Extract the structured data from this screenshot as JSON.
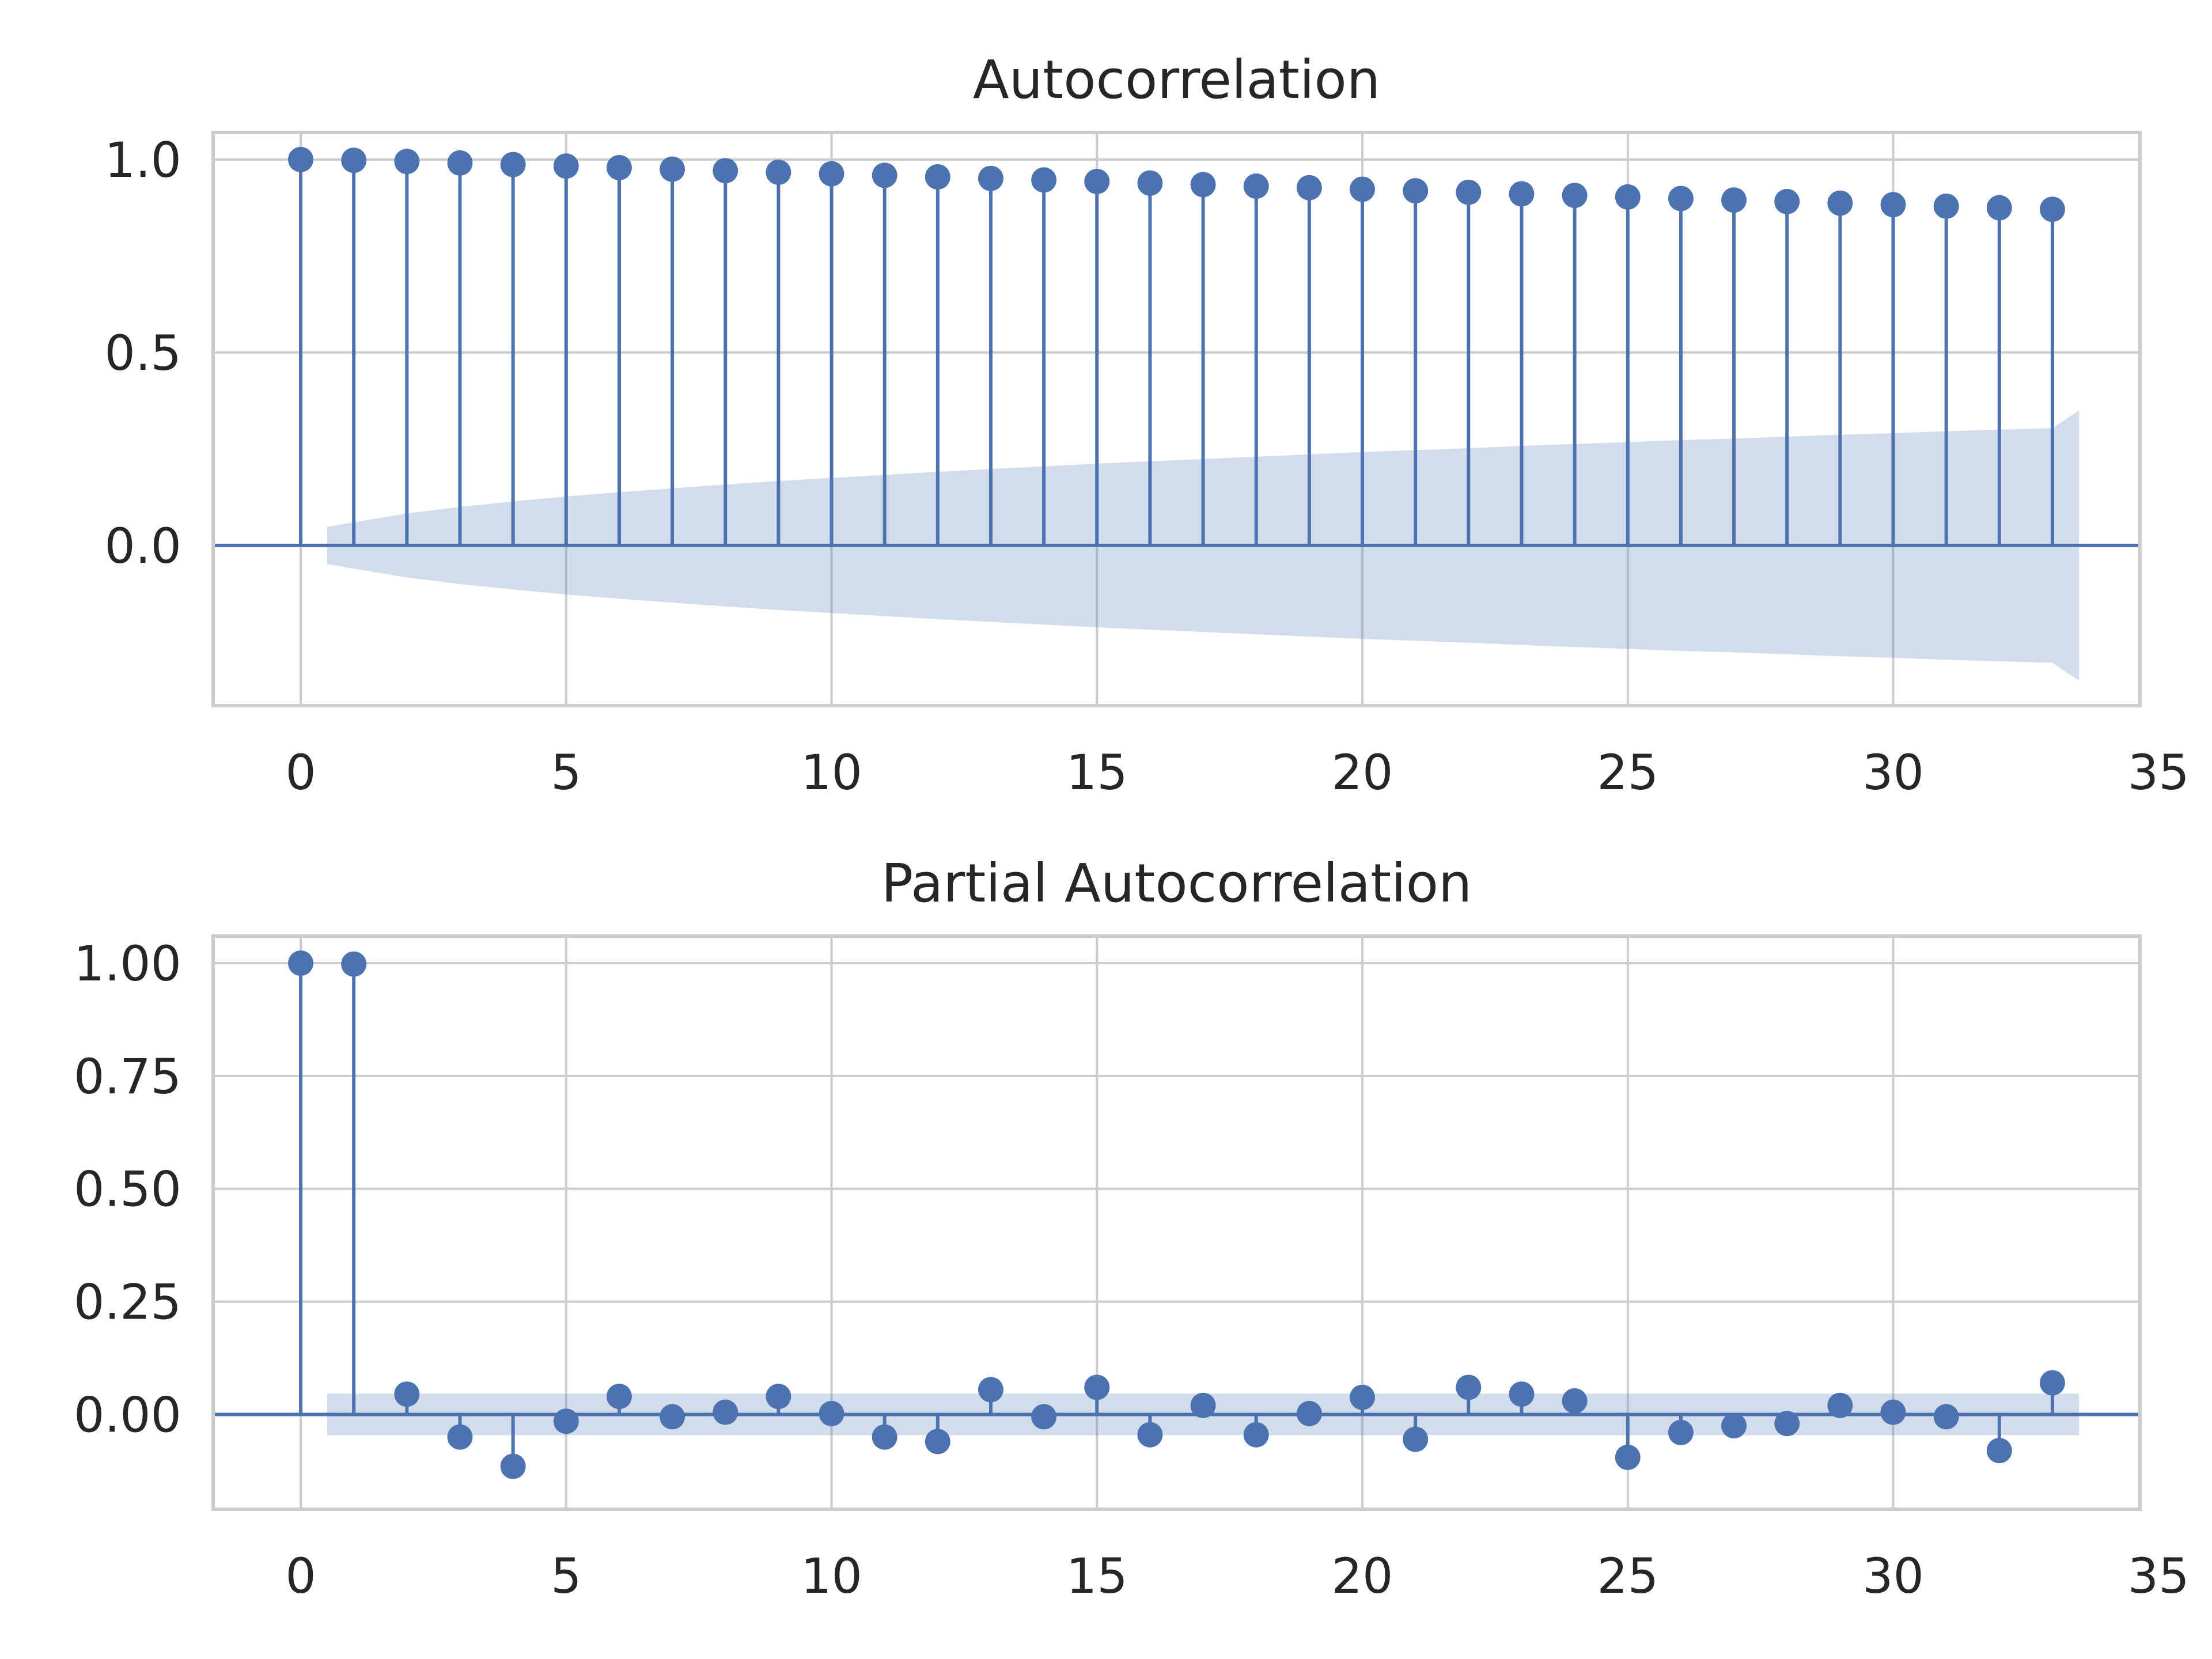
{
  "chart_data": [
    {
      "type": "stem",
      "title": "Autocorrelation",
      "xlabel": "",
      "ylabel": "",
      "xlim": [
        -1.65,
        34.65
      ],
      "ylim": [
        -0.415,
        1.07
      ],
      "xticks": [
        0,
        5,
        10,
        15,
        20,
        25,
        30,
        35
      ],
      "xtick_labels": [
        "0",
        "5",
        "10",
        "15",
        "20",
        "25",
        "30",
        "35"
      ],
      "yticks": [
        0.0,
        0.5,
        1.0
      ],
      "ytick_labels": [
        "0.0",
        "0.5",
        "1.0"
      ],
      "grid": true,
      "color": "#4c72b0",
      "x": [
        0,
        1,
        2,
        3,
        4,
        5,
        6,
        7,
        8,
        9,
        10,
        11,
        12,
        13,
        14,
        15,
        16,
        17,
        18,
        19,
        20,
        21,
        22,
        23,
        24,
        25,
        26,
        27,
        28,
        29,
        30,
        31,
        32,
        33
      ],
      "values": [
        1.0,
        0.998,
        0.995,
        0.991,
        0.987,
        0.983,
        0.979,
        0.975,
        0.971,
        0.967,
        0.963,
        0.959,
        0.955,
        0.951,
        0.947,
        0.943,
        0.939,
        0.935,
        0.931,
        0.927,
        0.923,
        0.919,
        0.915,
        0.911,
        0.907,
        0.903,
        0.899,
        0.895,
        0.891,
        0.887,
        0.883,
        0.879,
        0.875,
        0.871
      ],
      "confidence_band": {
        "x": [
          0.5,
          1,
          2,
          3,
          4,
          5,
          6,
          7,
          8,
          9,
          10,
          11,
          12,
          13,
          14,
          15,
          16,
          17,
          18,
          19,
          20,
          21,
          22,
          23,
          24,
          25,
          26,
          27,
          28,
          29,
          30,
          31,
          32,
          33,
          33.5
        ],
        "upper": [
          0.048,
          0.06,
          0.083,
          0.1,
          0.114,
          0.127,
          0.138,
          0.148,
          0.158,
          0.167,
          0.175,
          0.183,
          0.191,
          0.198,
          0.205,
          0.212,
          0.218,
          0.224,
          0.23,
          0.236,
          0.242,
          0.247,
          0.252,
          0.258,
          0.263,
          0.268,
          0.273,
          0.277,
          0.282,
          0.287,
          0.291,
          0.296,
          0.3,
          0.304,
          0.35
        ]
      }
    },
    {
      "type": "stem",
      "title": "Partial Autocorrelation",
      "xlabel": "",
      "ylabel": "",
      "xlim": [
        -1.65,
        34.65
      ],
      "ylim": [
        -0.21,
        1.06
      ],
      "xticks": [
        0,
        5,
        10,
        15,
        20,
        25,
        30,
        35
      ],
      "xtick_labels": [
        "0",
        "5",
        "10",
        "15",
        "20",
        "25",
        "30",
        "35"
      ],
      "yticks": [
        0.0,
        0.25,
        0.5,
        0.75,
        1.0
      ],
      "ytick_labels": [
        "0.00",
        "0.25",
        "0.50",
        "0.75",
        "1.00"
      ],
      "grid": true,
      "color": "#4c72b0",
      "x": [
        0,
        1,
        2,
        3,
        4,
        5,
        6,
        7,
        8,
        9,
        10,
        11,
        12,
        13,
        14,
        15,
        16,
        17,
        18,
        19,
        20,
        21,
        22,
        23,
        24,
        25,
        26,
        27,
        28,
        29,
        30,
        31,
        32,
        33
      ],
      "values": [
        1.0,
        0.998,
        0.045,
        -0.05,
        -0.115,
        -0.015,
        0.04,
        -0.005,
        0.005,
        0.04,
        0.002,
        -0.05,
        -0.06,
        0.055,
        -0.005,
        0.06,
        -0.045,
        0.02,
        -0.045,
        0.002,
        0.038,
        -0.055,
        0.06,
        0.045,
        0.03,
        -0.095,
        -0.04,
        -0.025,
        -0.02,
        0.02,
        0.005,
        -0.005,
        -0.08,
        0.07
      ],
      "confidence_band": {
        "x": [
          0.5,
          33.5
        ],
        "upper": [
          0.046,
          0.046
        ]
      }
    }
  ]
}
